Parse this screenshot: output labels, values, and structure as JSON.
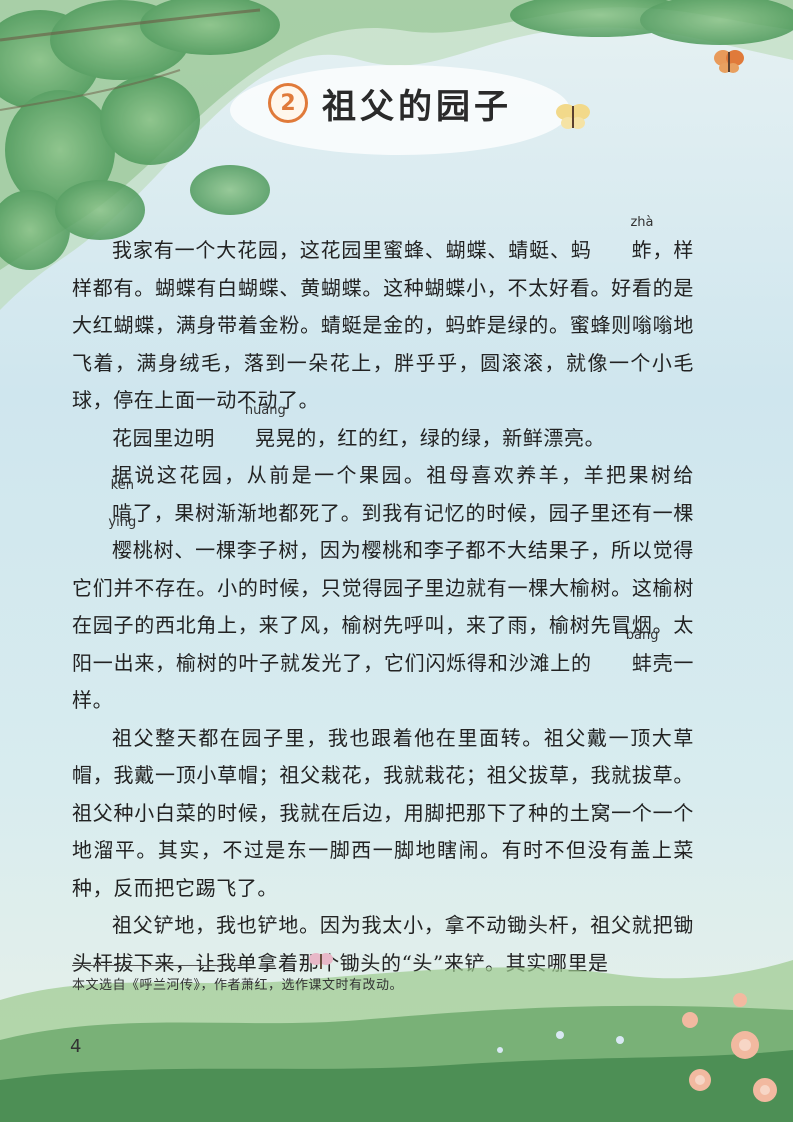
{
  "lesson": {
    "number": "2",
    "title": "祖父的园子"
  },
  "paragraphs": [
    [
      {
        "t": "我家有一个大花园，这花园里蜜蜂、蝴蝶、蜻蜓、蚂"
      },
      {
        "t": "蚱",
        "py": "zhà"
      },
      {
        "t": "，样样都有。蝴蝶有白蝴蝶、黄蝴蝶。这种蝴蝶小，不太好看。好看的是大红蝴蝶，满身带着金粉。蜻蜓是金的，蚂蚱是绿的。蜜蜂则嗡嗡地飞着，满身绒毛，落到一朵花上，胖乎乎，圆滚滚，就像一个小毛球，停在上面一动不动了。"
      }
    ],
    [
      {
        "t": "花园里边明"
      },
      {
        "t": "晃",
        "py": "huǎng"
      },
      {
        "t": "晃的，红的红，绿的绿，新鲜漂亮。"
      }
    ],
    [
      {
        "t": "据说这花园，从前是一个果园。祖母喜欢养羊，羊把果树给"
      },
      {
        "t": "啃",
        "py": "kěn"
      },
      {
        "t": "了，果树渐渐地都死了。到我有记忆的时候，园子里还有一棵"
      },
      {
        "t": "樱",
        "py": "yīng"
      },
      {
        "t": "桃树、一棵李子树，因为樱桃和李子都不大结果子，所以觉得它们并不存在。小的时候，只觉得园子里边就有一棵大榆树。这榆树在园子的西北角上，来了风，榆树先呼叫，来了雨，榆树先冒烟。太阳一出来，榆树的叶子就发光了，它们闪烁得和沙滩上的"
      },
      {
        "t": "蚌",
        "py": "bàng"
      },
      {
        "t": "壳一样。"
      }
    ],
    [
      {
        "t": "祖父整天都在园子里，我也跟着他在里面转。祖父戴一顶大草帽，我戴一顶小草帽；祖父栽花，我就栽花；祖父拔草，我就拔草。祖父种小白菜的时候，我就在后边，用脚把那下了种的土窝一个一个地溜平。其实，不过是东一脚西一脚地瞎闹。有时不但没有盖上菜种，反而把它踢飞了。"
      }
    ],
    [
      {
        "t": "祖父铲地，我也铲地。因为我太小，拿不动锄头杆，祖父就把锄头杆拔下来，让我单拿着那个锄头的“头”来铲。其实哪里是"
      }
    ]
  ],
  "footnote": "本文选自《呼兰河传》，作者萧红，选作课文时有改动。",
  "page_number": "4",
  "colors": {
    "accent": "#e07a3a",
    "leaf": "#6aa86a",
    "sky": "#cfe6ee"
  }
}
